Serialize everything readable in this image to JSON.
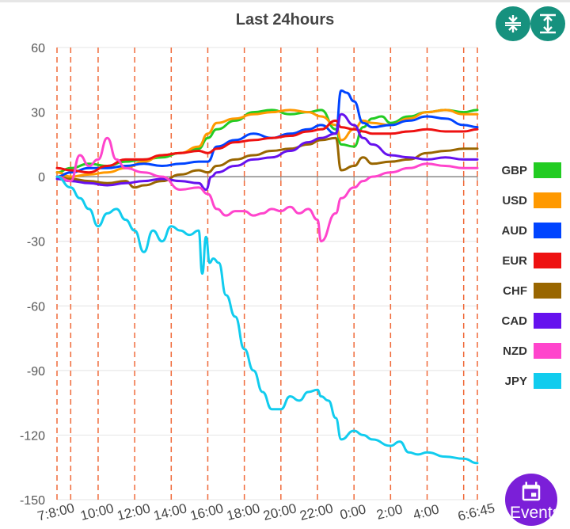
{
  "header": {
    "title": "Last 24hours"
  },
  "toolbar": {
    "compress_icon": "compress-vertical-icon",
    "expand_icon": "expand-vertical-icon"
  },
  "events_button": {
    "label": "Events",
    "icon": "calendar-icon",
    "color": "#7b1fd8"
  },
  "chart_data": {
    "type": "line",
    "title": "Last 24hours",
    "ylim": [
      -150,
      60
    ],
    "yticks": [
      60,
      30,
      0,
      -30,
      -60,
      -90,
      -120,
      -150
    ],
    "x_tick_labels": [
      "7:8:00",
      "10:00",
      "12:00",
      "14:00",
      "16:00",
      "18:00",
      "20:00",
      "22:00",
      "0:00",
      "2:00",
      "4:00",
      "6:6:45"
    ],
    "x_start_hour": 7.75,
    "x_end_hour": 30.75,
    "session_markers": [
      7.75,
      8.5,
      10,
      12,
      14,
      16,
      18,
      20,
      22,
      24,
      26,
      28,
      30,
      30.75
    ],
    "series": [
      {
        "name": "GBP",
        "color": "#22cc22",
        "x": [
          7.75,
          8.5,
          9.5,
          10.5,
          11.5,
          12.5,
          13.5,
          14.5,
          15.5,
          16,
          16.5,
          17.5,
          18.5,
          19.5,
          20.5,
          21.5,
          22.2,
          23,
          23.3,
          24,
          24.5,
          25,
          25.5,
          26,
          27,
          28,
          29,
          30,
          30.75
        ],
        "values": [
          2,
          4,
          6,
          5,
          7,
          8,
          9,
          11,
          13,
          18,
          22,
          26,
          30,
          31,
          29,
          30,
          31,
          22,
          15,
          14,
          23,
          27,
          28,
          25,
          28,
          30,
          31,
          30,
          31
        ]
      },
      {
        "name": "USD",
        "color": "#ff9900",
        "x": [
          7.75,
          8.5,
          9.5,
          10.5,
          11.5,
          12.5,
          13.5,
          14.5,
          15.5,
          16,
          16.5,
          17.5,
          18.5,
          19.5,
          20.5,
          21.5,
          22.2,
          23,
          23.3,
          24,
          24.5,
          25,
          26,
          27,
          28,
          29,
          30,
          30.75
        ],
        "values": [
          2,
          0,
          1,
          2,
          4,
          7,
          10,
          11,
          14,
          20,
          25,
          27,
          29,
          30,
          31,
          30,
          28,
          24,
          17,
          22,
          26,
          25,
          24,
          27,
          30,
          31,
          29,
          29
        ]
      },
      {
        "name": "AUD",
        "color": "#0044ff",
        "x": [
          7.75,
          8.5,
          9.5,
          10.5,
          11.5,
          12.5,
          13.5,
          14.5,
          15.5,
          16,
          16.5,
          17.5,
          18.5,
          19.5,
          20.5,
          21.5,
          22.2,
          23,
          23.3,
          23.6,
          24,
          24.5,
          25,
          26,
          27,
          28,
          29,
          30,
          30.75
        ],
        "values": [
          0,
          2,
          4,
          4,
          5,
          6,
          5,
          6,
          7,
          7,
          14,
          17,
          20,
          18,
          20,
          22,
          24,
          20,
          40,
          39,
          35,
          25,
          23,
          24,
          26,
          28,
          27,
          24,
          23
        ]
      },
      {
        "name": "EUR",
        "color": "#ee1111",
        "x": [
          7.75,
          8.5,
          9.5,
          10.5,
          11.5,
          12.5,
          13.5,
          14.5,
          15.5,
          16,
          16.5,
          17.5,
          18.5,
          19.5,
          20.5,
          21.5,
          22.2,
          23,
          23.3,
          24,
          24.5,
          25,
          26,
          27,
          28,
          29,
          30,
          30.75
        ],
        "values": [
          4,
          3,
          2,
          5,
          8,
          8,
          10,
          11,
          12,
          11,
          13,
          16,
          17,
          18,
          19,
          21,
          22,
          26,
          23,
          22,
          21,
          20,
          20,
          21,
          22,
          21,
          21,
          22
        ]
      },
      {
        "name": "CHF",
        "color": "#996600",
        "x": [
          7.75,
          8.5,
          9.5,
          10.5,
          11.5,
          12,
          12.5,
          13.5,
          14.5,
          15.5,
          16,
          16.5,
          17.5,
          18.5,
          19.5,
          20.5,
          21.5,
          22.2,
          23,
          23.3,
          24,
          24.5,
          25,
          26,
          27,
          28,
          29,
          30,
          30.75
        ],
        "values": [
          0,
          -1,
          -2,
          -3,
          -2,
          -5,
          -4,
          -2,
          1,
          3,
          2,
          5,
          8,
          10,
          12,
          13,
          15,
          17,
          18,
          3,
          5,
          9,
          6,
          7,
          8,
          11,
          12,
          13,
          13
        ]
      },
      {
        "name": "CAD",
        "color": "#6611ee",
        "x": [
          7.75,
          8.5,
          9.5,
          10.5,
          11.5,
          12.5,
          13.5,
          14.5,
          15.5,
          15.9,
          16.2,
          16.5,
          17.5,
          18.5,
          19.5,
          20.5,
          21.5,
          22.2,
          23,
          23.3,
          24,
          24.5,
          25,
          26,
          27,
          28,
          29,
          30,
          30.75
        ],
        "values": [
          -1,
          -2,
          -3,
          -4,
          -3,
          -2,
          -1,
          -2,
          -3,
          -6,
          0,
          2,
          5,
          8,
          9,
          12,
          16,
          18,
          20,
          29,
          24,
          18,
          15,
          10,
          9,
          8,
          9,
          8,
          8
        ]
      },
      {
        "name": "NZD",
        "color": "#ff44cc",
        "x": [
          7.75,
          8.5,
          9,
          9.5,
          10,
          10.5,
          11,
          11.5,
          12.5,
          13.5,
          14.5,
          15.5,
          16,
          16.5,
          17,
          17.5,
          18,
          18.5,
          19,
          19.5,
          20,
          20.5,
          21,
          21.5,
          22,
          22.2,
          23,
          23.3,
          24,
          24.5,
          25,
          26,
          27,
          28,
          29,
          30,
          30.75
        ],
        "values": [
          0,
          -2,
          10,
          5,
          8,
          18,
          8,
          4,
          2,
          0,
          -6,
          -5,
          -8,
          -15,
          -18,
          -16,
          -16,
          -18,
          -17,
          -15,
          -16,
          -14,
          -17,
          -15,
          -20,
          -30,
          -17,
          -10,
          -5,
          -2,
          0,
          2,
          4,
          6,
          5,
          4,
          4
        ]
      },
      {
        "name": "JPY",
        "color": "#11ccee",
        "x": [
          7.75,
          8.5,
          9,
          9.5,
          10,
          10.5,
          11,
          11.5,
          12,
          12.5,
          13,
          13.5,
          14,
          14.5,
          15,
          15.5,
          15.7,
          15.9,
          16.1,
          16.3,
          16.6,
          17,
          17.5,
          18,
          18.5,
          19,
          19.5,
          20,
          20.5,
          21,
          21.5,
          22,
          22.2,
          22.6,
          23,
          23.3,
          24,
          24.5,
          25,
          26,
          26.5,
          27,
          27.5,
          28,
          29,
          30,
          30.75
        ],
        "values": [
          0,
          -5,
          -10,
          -15,
          -23,
          -17,
          -15,
          -20,
          -25,
          -35,
          -25,
          -30,
          -23,
          -25,
          -27,
          -25,
          -45,
          -28,
          -40,
          -38,
          -40,
          -55,
          -65,
          -80,
          -90,
          -100,
          -108,
          -108,
          -102,
          -104,
          -100,
          -99,
          -102,
          -104,
          -112,
          -122,
          -118,
          -120,
          -122,
          -125,
          -123,
          -128,
          -129,
          -128,
          -130,
          -131,
          -133
        ]
      }
    ]
  }
}
